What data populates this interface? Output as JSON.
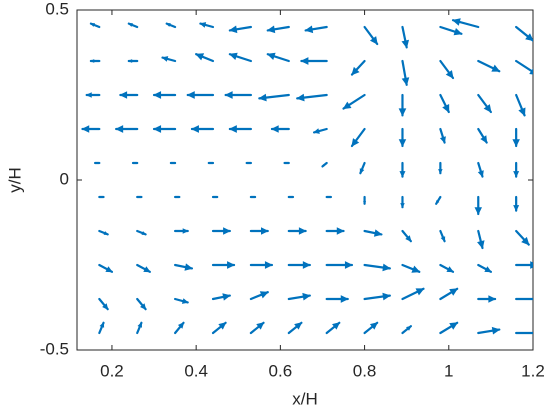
{
  "chart_data": {
    "type": "quiver",
    "xlabel": "x/H",
    "ylabel": "y/H",
    "color": "#0072bd",
    "xlim": [
      0.117,
      1.2
    ],
    "ylim": [
      -0.5,
      0.5
    ],
    "xticks": [
      0.2,
      0.4,
      0.6,
      0.8,
      1,
      1.2
    ],
    "yticks": [
      -0.5,
      0,
      0.5
    ],
    "x": [
      0.17,
      0.26,
      0.35,
      0.44,
      0.53,
      0.62,
      0.71,
      0.8,
      0.89,
      0.98,
      1.07,
      1.16,
      0.17,
      0.26,
      0.35,
      0.44,
      0.53,
      0.62,
      0.71,
      0.8,
      0.89,
      0.98,
      1.07,
      1.16,
      0.17,
      0.26,
      0.35,
      0.44,
      0.53,
      0.62,
      0.71,
      0.8,
      0.89,
      0.98,
      1.07,
      1.16,
      0.17,
      0.26,
      0.35,
      0.44,
      0.53,
      0.62,
      0.71,
      0.8,
      0.89,
      0.98,
      1.07,
      1.16,
      0.17,
      0.26,
      0.35,
      0.44,
      0.53,
      0.62,
      0.71,
      0.8,
      0.89,
      0.98,
      1.07,
      1.16,
      0.17,
      0.26,
      0.35,
      0.44,
      0.53,
      0.62,
      0.71,
      0.8,
      0.89,
      0.98,
      1.07,
      1.16,
      0.17,
      0.26,
      0.35,
      0.44,
      0.53,
      0.62,
      0.71,
      0.8,
      0.89,
      0.98,
      1.07,
      1.16,
      0.17,
      0.26,
      0.35,
      0.44,
      0.53,
      0.62,
      0.71,
      0.8,
      0.89,
      0.98,
      1.07,
      1.16,
      0.17,
      0.26,
      0.35,
      0.44,
      0.53,
      0.62,
      0.71,
      0.8,
      0.89,
      0.98,
      1.07,
      1.16,
      0.17,
      0.26,
      0.35,
      0.44,
      0.53,
      0.62,
      0.71,
      0.8,
      0.89,
      0.98,
      1.07,
      1.16
    ],
    "y": [
      0.45,
      0.45,
      0.45,
      0.45,
      0.45,
      0.45,
      0.45,
      0.45,
      0.45,
      0.45,
      0.45,
      0.45,
      0.35,
      0.35,
      0.35,
      0.35,
      0.35,
      0.35,
      0.35,
      0.35,
      0.35,
      0.35,
      0.35,
      0.35,
      0.25,
      0.25,
      0.25,
      0.25,
      0.25,
      0.25,
      0.25,
      0.25,
      0.25,
      0.25,
      0.25,
      0.25,
      0.15,
      0.15,
      0.15,
      0.15,
      0.15,
      0.15,
      0.15,
      0.15,
      0.15,
      0.15,
      0.15,
      0.15,
      0.05,
      0.05,
      0.05,
      0.05,
      0.05,
      0.05,
      0.05,
      0.05,
      0.05,
      0.05,
      0.05,
      0.05,
      -0.05,
      -0.05,
      -0.05,
      -0.05,
      -0.05,
      -0.05,
      -0.05,
      -0.05,
      -0.05,
      -0.05,
      -0.05,
      -0.05,
      -0.15,
      -0.15,
      -0.15,
      -0.15,
      -0.15,
      -0.15,
      -0.15,
      -0.15,
      -0.15,
      -0.15,
      -0.15,
      -0.15,
      -0.25,
      -0.25,
      -0.25,
      -0.25,
      -0.25,
      -0.25,
      -0.25,
      -0.25,
      -0.25,
      -0.25,
      -0.25,
      -0.25,
      -0.35,
      -0.35,
      -0.35,
      -0.35,
      -0.35,
      -0.35,
      -0.35,
      -0.35,
      -0.35,
      -0.35,
      -0.35,
      -0.35,
      -0.45,
      -0.45,
      -0.45,
      -0.45,
      -0.45,
      -0.45,
      -0.45,
      -0.45,
      -0.45,
      -0.45,
      -0.45,
      -0.45
    ],
    "u": [
      -0.02,
      -0.02,
      -0.02,
      -0.03,
      -0.05,
      -0.05,
      -0.05,
      0.03,
      0.01,
      0.05,
      -0.06,
      0.04,
      -0.02,
      -0.02,
      -0.03,
      -0.04,
      -0.05,
      -0.05,
      -0.06,
      -0.03,
      0.01,
      0.03,
      0.05,
      0.05,
      -0.03,
      -0.04,
      -0.05,
      -0.06,
      -0.06,
      -0.07,
      -0.07,
      -0.05,
      0,
      0.02,
      0.03,
      0.02,
      -0.04,
      -0.05,
      -0.05,
      -0.05,
      -0.05,
      -0.04,
      -0.03,
      -0.03,
      0,
      0.01,
      0.02,
      0,
      -0.01,
      -0.01,
      -0.01,
      -0.01,
      -0.01,
      -0.01,
      -0.01,
      -0.01,
      0,
      0,
      0.01,
      0,
      0.01,
      0.01,
      0.01,
      0.01,
      0.01,
      0.01,
      0.01,
      0,
      0,
      -0.01,
      0,
      0,
      0.02,
      0.02,
      0.03,
      0.04,
      0.04,
      0.04,
      0.04,
      0.04,
      0.02,
      0.01,
      0.01,
      0.03,
      0.03,
      0.03,
      0.04,
      0.05,
      0.05,
      0.05,
      0.06,
      0.06,
      0.04,
      0.03,
      0.03,
      0.05,
      0.02,
      0.02,
      0.03,
      0.04,
      0.04,
      0.05,
      0.05,
      0.06,
      0.05,
      0.04,
      0.04,
      0.06,
      0.01,
      0.01,
      0.02,
      0.03,
      0.03,
      0.03,
      0.03,
      0.03,
      0.02,
      0.04,
      0.05,
      0.06
    ],
    "v": [
      0.01,
      0.01,
      0.01,
      0.01,
      -0.01,
      -0.01,
      -0.01,
      -0.05,
      -0.06,
      -0.02,
      0.02,
      -0.04,
      0,
      0,
      0.01,
      0.02,
      0.02,
      0.02,
      0,
      -0.04,
      -0.07,
      -0.05,
      -0.03,
      -0.04,
      0,
      0,
      0,
      0,
      0,
      -0.01,
      -0.01,
      -0.04,
      -0.06,
      -0.05,
      -0.05,
      -0.06,
      0,
      0,
      0,
      0,
      0,
      0,
      -0.01,
      -0.05,
      -0.05,
      -0.04,
      -0.04,
      -0.05,
      0,
      0,
      0,
      0,
      0,
      0,
      -0.01,
      -0.03,
      -0.04,
      -0.03,
      -0.04,
      -0.04,
      0,
      0,
      0,
      0,
      0,
      0,
      0,
      -0.02,
      -0.03,
      -0.02,
      -0.05,
      -0.04,
      -0.01,
      -0.01,
      0,
      0,
      0,
      0,
      0,
      -0.01,
      -0.03,
      -0.03,
      -0.05,
      -0.04,
      -0.02,
      -0.02,
      -0.01,
      0,
      0,
      0,
      0,
      -0.01,
      -0.02,
      -0.02,
      -0.02,
      0,
      -0.03,
      -0.03,
      -0.01,
      0.01,
      0.02,
      0.01,
      0,
      0.01,
      0.03,
      0.03,
      0,
      0,
      0.03,
      0.03,
      0.03,
      0.03,
      0.03,
      0.03,
      0.03,
      0.03,
      0.02,
      0.03,
      0.01,
      0
    ]
  }
}
